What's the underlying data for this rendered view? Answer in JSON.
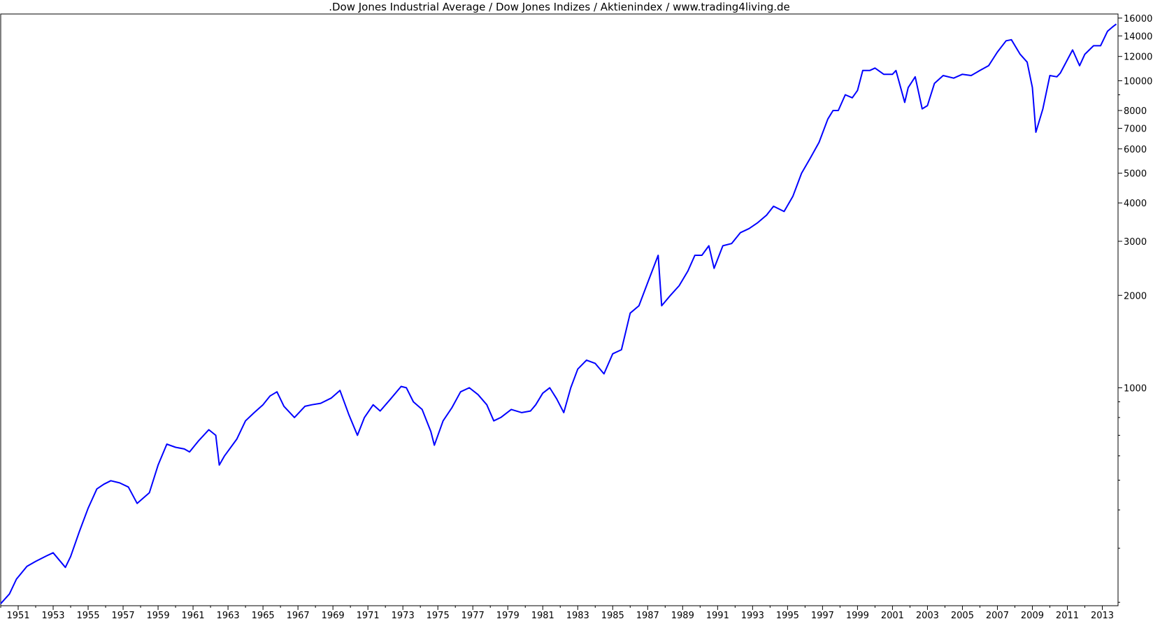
{
  "chart_data": {
    "type": "line",
    "title": ".Dow Jones Industrial Average / Dow Jones Indizes / Aktienindex / www.trading4living.de",
    "xlabel": "",
    "ylabel": "",
    "y_scale": "log",
    "ylim": [
      195,
      16500
    ],
    "xlim": [
      1950.0,
      2013.9
    ],
    "grid": false,
    "legend": "none",
    "line_color": "#0000ff",
    "x_ticks": [
      "1951",
      "1953",
      "1955",
      "1957",
      "1959",
      "1961",
      "1963",
      "1965",
      "1967",
      "1969",
      "1971",
      "1973",
      "1975",
      "1977",
      "1979",
      "1981",
      "1983",
      "1985",
      "1987",
      "1989",
      "1991",
      "1993",
      "1995",
      "1997",
      "1999",
      "2001",
      "2003",
      "2005",
      "2007",
      "2009",
      "2011",
      "2013"
    ],
    "y_ticks_major": [
      1000,
      2000,
      3000,
      4000,
      5000,
      6000,
      7000,
      8000,
      10000,
      12000,
      14000,
      16000
    ],
    "y_ticks_major_labels": [
      "1000",
      "2000",
      "3000",
      "4000",
      "5000",
      "6000",
      "7000",
      "8000",
      "10000",
      "12000",
      "14000",
      "16000"
    ],
    "y_ticks_minor": [
      200,
      300,
      400,
      500,
      600,
      700,
      800,
      900,
      9000
    ],
    "series": [
      {
        "x": [
          1950.0,
          1950.5,
          1950.9,
          1951.5,
          1952.0,
          1952.6,
          1953.0,
          1953.7,
          1954.0,
          1954.5,
          1955.0,
          1955.5,
          1955.9,
          1956.3,
          1956.8,
          1957.3,
          1957.8,
          1958.5,
          1959.0,
          1959.5,
          1960.0,
          1960.5,
          1960.8,
          1961.3,
          1961.9,
          1962.3,
          1962.5,
          1962.8,
          1963.5,
          1964.0,
          1964.5,
          1965.0,
          1965.4,
          1965.8,
          1966.2,
          1966.8,
          1967.4,
          1967.8,
          1968.3,
          1968.9,
          1969.4,
          1969.9,
          1970.4,
          1970.8,
          1971.3,
          1971.7,
          1972.3,
          1972.9,
          1973.2,
          1973.6,
          1974.1,
          1974.6,
          1974.8,
          1975.3,
          1975.8,
          1976.3,
          1976.8,
          1977.3,
          1977.8,
          1978.2,
          1978.6,
          1979.2,
          1979.8,
          1980.3,
          1980.6,
          1981.0,
          1981.4,
          1981.8,
          1982.2,
          1982.6,
          1983.0,
          1983.5,
          1984.0,
          1984.5,
          1985.0,
          1985.5,
          1986.0,
          1986.5,
          1987.0,
          1987.6,
          1987.8,
          1988.3,
          1988.8,
          1989.3,
          1989.7,
          1990.1,
          1990.5,
          1990.8,
          1991.3,
          1991.8,
          1992.3,
          1992.8,
          1993.3,
          1993.8,
          1994.2,
          1994.8,
          1995.3,
          1995.8,
          1996.3,
          1996.8,
          1997.3,
          1997.6,
          1997.9,
          1998.3,
          1998.7,
          1999.0,
          1999.3,
          1999.7,
          2000.0,
          2000.5,
          2001.0,
          2001.2,
          2001.7,
          2001.9,
          2002.3,
          2002.7,
          2003.0,
          2003.4,
          2003.9,
          2004.5,
          2005.0,
          2005.5,
          2006.0,
          2006.5,
          2007.0,
          2007.5,
          2007.8,
          2008.3,
          2008.7,
          2009.0,
          2009.2,
          2009.6,
          2010.0,
          2010.4,
          2010.6,
          2011.0,
          2011.3,
          2011.7,
          2012.0,
          2012.5,
          2012.9,
          2013.3,
          2013.6,
          2013.8
        ],
        "y": [
          198,
          213,
          238,
          262,
          272,
          283,
          290,
          260,
          282,
          340,
          405,
          468,
          485,
          498,
          490,
          475,
          420,
          455,
          560,
          655,
          640,
          632,
          618,
          670,
          730,
          700,
          560,
          600,
          680,
          780,
          830,
          880,
          940,
          970,
          870,
          800,
          870,
          880,
          890,
          925,
          980,
          820,
          700,
          800,
          880,
          840,
          920,
          1010,
          1000,
          900,
          850,
          720,
          650,
          780,
          860,
          970,
          1000,
          950,
          880,
          780,
          800,
          850,
          830,
          840,
          880,
          960,
          1000,
          920,
          830,
          1000,
          1150,
          1230,
          1200,
          1110,
          1290,
          1330,
          1750,
          1850,
          2200,
          2700,
          1850,
          2000,
          2150,
          2400,
          2700,
          2700,
          2900,
          2450,
          2900,
          2950,
          3200,
          3300,
          3450,
          3650,
          3900,
          3750,
          4200,
          5000,
          5600,
          6300,
          7500,
          8000,
          8000,
          9000,
          8800,
          9300,
          10800,
          10800,
          11000,
          10500,
          10500,
          10800,
          8500,
          9500,
          10300,
          8100,
          8300,
          9800,
          10400,
          10200,
          10500,
          10400,
          10800,
          11200,
          12400,
          13500,
          13600,
          12200,
          11500,
          9500,
          6800,
          8100,
          10400,
          10300,
          10600,
          11700,
          12600,
          11200,
          12200,
          13000,
          13000,
          14500,
          15000,
          15300
        ]
      }
    ]
  }
}
